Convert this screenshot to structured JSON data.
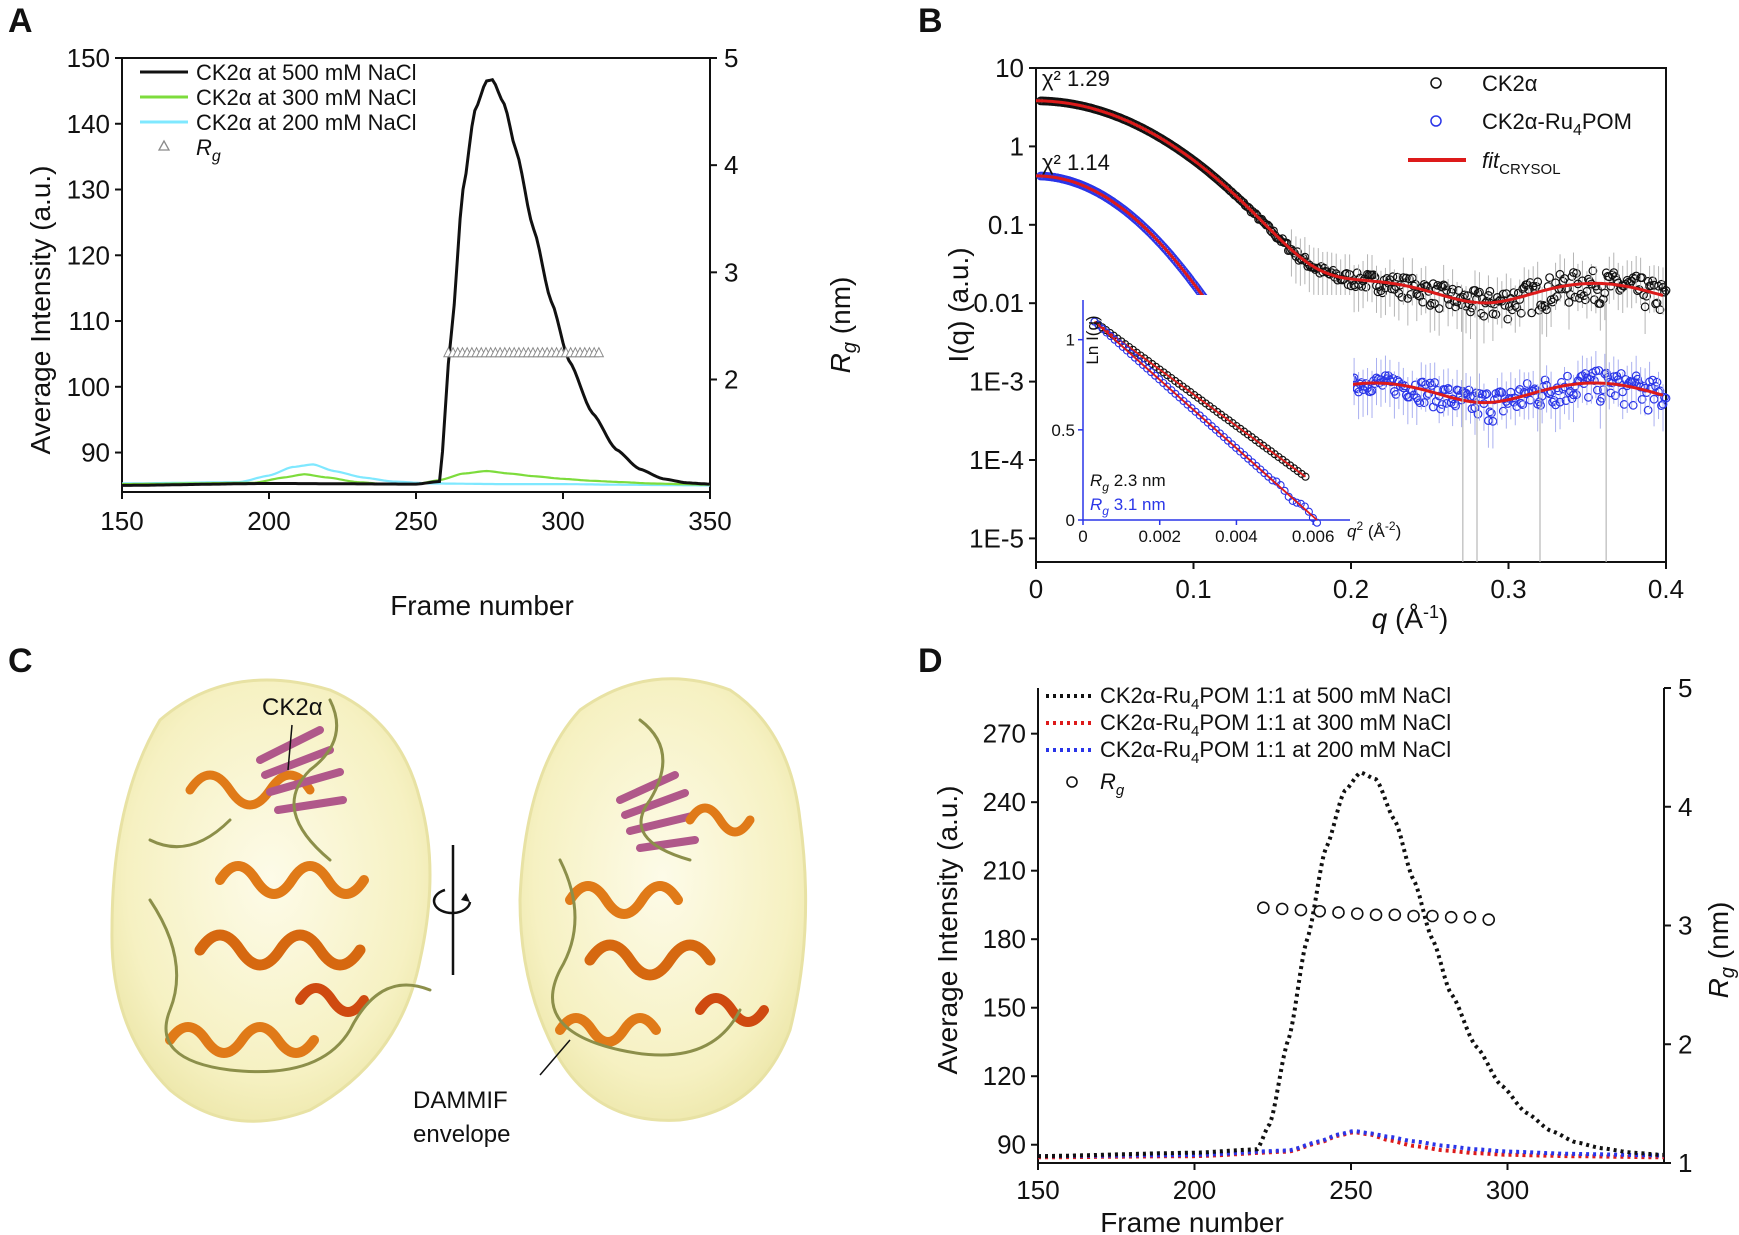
{
  "panels": {
    "A": {
      "letter": "A",
      "legend": [
        "CK2α at 500 mM NaCl",
        "CK2α at 300 mM NaCl",
        "CK2α at 200 mM NaCl"
      ],
      "rg_legend": "R",
      "rg_sub": "g",
      "xlabel": "Frame number",
      "ylabel": "Average Intensity (a.u.)",
      "y2label": "R",
      "y2label_sub": "g",
      "y2label_unit": " (nm)"
    },
    "B": {
      "letter": "B",
      "chi1": "χ² 1.29",
      "chi2": "χ² 1.14",
      "legend_ck2a": "CK2α",
      "legend_ru_a": "CK2α-Ru",
      "legend_ru_sub": "4",
      "legend_ru_b": "POM",
      "legend_fit": "fit",
      "legend_fit_sub": "CRYSOL",
      "xlabel_q": "q",
      "xlabel_unit": " (Å",
      "xlabel_exp": "-1",
      "xlabel_close": ")",
      "ylabel": "I(q) (a.u.)",
      "inset": {
        "ylabel": "Ln I(q)",
        "xlabel_q": "q",
        "xlabel_exp": "2",
        "xlabel_unit": " (Å",
        "xlabel_unit_exp": "-2",
        "xlabel_close": ")",
        "rg1": "R",
        "rg1_sub": "g",
        "rg1_val": " 2.3 nm",
        "rg2": "R",
        "rg2_sub": "g",
        "rg2_val": " 3.1 nm"
      }
    },
    "C": {
      "letter": "C",
      "label_protein": "CK2α",
      "label_env1": "DAMMIF",
      "label_env2": "envelope"
    },
    "D": {
      "letter": "D",
      "legend_prefix": "CK2α-Ru",
      "legend_sub": "4",
      "legend_items": [
        "POM 1:1 at 500 mM NaCl",
        "POM 1:1 at 300 mM NaCl",
        "POM 1:1 at 200 mM NaCl"
      ],
      "rg_legend": "R",
      "rg_sub": "g",
      "xlabel": "Frame number",
      "ylabel": "Average Intensity (a.u.)",
      "y2label": "R",
      "y2label_sub": "g",
      "y2label_unit": " (nm)"
    }
  },
  "colors": {
    "black": "#111111",
    "green": "#7ddc3c",
    "cyan": "#7fe8ff",
    "red": "#dd1a1a",
    "blue": "#2a35e8",
    "grey": "#8a8a8a",
    "envelope": "#f6f3c6",
    "helix": "#e07a18",
    "sheet": "#b0588a",
    "loop": "#8c8f4a"
  },
  "chart_data": [
    {
      "panel": "A",
      "type": "line",
      "title": "",
      "xlabel": "Frame number",
      "ylabel": "Average Intensity (a.u.)",
      "y2label": "Rg (nm)",
      "xlim": [
        150,
        350
      ],
      "ylim": [
        84,
        150
      ],
      "y2lim": [
        0.95,
        5
      ],
      "xticks": [
        150,
        200,
        250,
        300,
        350
      ],
      "yticks": [
        90,
        100,
        110,
        120,
        130,
        140,
        150
      ],
      "y2ticks": [
        2,
        3,
        4,
        5
      ],
      "series": [
        {
          "name": "CK2α at 500 mM NaCl",
          "color": "#111111",
          "x": [
            150,
            200,
            250,
            258,
            262,
            266,
            270,
            274,
            276,
            280,
            284,
            290,
            296,
            302,
            310,
            318,
            326,
            334,
            342,
            350
          ],
          "y": [
            85,
            85.3,
            85.2,
            85.6,
            108,
            130,
            142,
            146.5,
            146.7,
            143,
            136,
            124,
            113,
            104,
            96,
            90.5,
            87.5,
            86,
            85.4,
            85.2
          ]
        },
        {
          "name": "CK2α at 300 mM NaCl",
          "color": "#7ddc3c",
          "x": [
            150,
            195,
            205,
            212,
            220,
            230,
            240,
            250,
            258,
            266,
            274,
            282,
            290,
            300,
            310,
            320,
            330,
            340,
            350
          ],
          "y": [
            85.2,
            85.4,
            86.2,
            86.7,
            86.2,
            85.5,
            85.2,
            85.2,
            85.8,
            86.8,
            87.2,
            86.8,
            86.4,
            86,
            85.7,
            85.5,
            85.3,
            85.2,
            85.1
          ]
        },
        {
          "name": "CK2α at 200 mM NaCl",
          "color": "#7fe8ff",
          "x": [
            150,
            190,
            200,
            208,
            215,
            222,
            232,
            242,
            255,
            280,
            300,
            320,
            350
          ],
          "y": [
            85.3,
            85.5,
            86.5,
            87.8,
            88.2,
            87.2,
            86.2,
            85.6,
            85.3,
            85.2,
            85.2,
            85.1,
            85.0
          ]
        },
        {
          "name": "Rg",
          "color": "#8a8a8a",
          "marker": "triangle",
          "x_range": [
            261,
            313
          ],
          "step": 1.6,
          "rg": 2.25
        }
      ]
    },
    {
      "panel": "B",
      "type": "scatter",
      "title": "",
      "xlabel": "q (Å-1)",
      "ylabel": "I(q) (a.u.)",
      "yscale": "log",
      "xlim": [
        0,
        0.4
      ],
      "ylim": [
        5e-06,
        10
      ],
      "xticks": [
        0,
        0.1,
        0.2,
        0.3,
        0.4
      ],
      "yticks": [
        "10",
        "1",
        "0.1",
        "0.01",
        "1E-3",
        "1E-4",
        "1E-5"
      ],
      "series": [
        {
          "name": "CK2α",
          "I0": 3.8,
          "Rg_nm": 2.3,
          "floor": 0.014,
          "chi2": 1.29,
          "color": "#111111"
        },
        {
          "name": "CK2α-Ru4POM",
          "I0": 0.42,
          "Rg_nm": 3.1,
          "floor": 0.00075,
          "chi2": 1.14,
          "color": "#2a35e8"
        },
        {
          "name": "fitCRYSOL",
          "color": "#dd1a1a"
        }
      ],
      "inset": {
        "type": "scatter",
        "xlabel": "q2 (Å-2)",
        "ylabel": "Ln I(q)",
        "xlim": [
          0,
          0.0067
        ],
        "ylim": [
          0,
          1.22
        ],
        "xticks": [
          0,
          0.002,
          0.004,
          0.006
        ],
        "yticks": [
          0,
          0.5,
          1
        ],
        "series": [
          {
            "name": "Rg 2.3 nm",
            "color": "#111111",
            "x": [
              0.0003,
              0.0058
            ],
            "y": [
              1.1,
              0.24
            ]
          },
          {
            "name": "Rg 3.1 nm",
            "color": "#2a35e8",
            "x": [
              0.0003,
              0.0061
            ],
            "y": [
              1.1,
              0.0
            ]
          }
        ]
      }
    },
    {
      "panel": "D",
      "type": "line",
      "title": "",
      "xlabel": "Frame number",
      "ylabel": "Average Intensity (a.u.)",
      "y2label": "Rg (nm)",
      "xlim": [
        150,
        350
      ],
      "ylim": [
        82,
        290
      ],
      "y2lim": [
        1,
        5
      ],
      "xticks": [
        150,
        200,
        250,
        300
      ],
      "yticks": [
        90,
        120,
        150,
        180,
        210,
        240,
        270
      ],
      "y2ticks": [
        1,
        2,
        3,
        4,
        5
      ],
      "series": [
        {
          "name": "CK2α-Ru4POM 1:1 at 500 mM NaCl",
          "color": "#111111",
          "style": "dotted",
          "x": [
            150,
            200,
            220,
            224,
            230,
            236,
            242,
            248,
            253,
            258,
            264,
            270,
            276,
            282,
            290,
            298,
            306,
            314,
            322,
            330,
            340,
            350
          ],
          "y": [
            85,
            86.5,
            88,
            99,
            136,
            180,
            220,
            245,
            253,
            250,
            232,
            206,
            180,
            156,
            133,
            116,
            104,
            96,
            91,
            88.5,
            86.5,
            85.5
          ]
        },
        {
          "name": "CK2α-Ru4POM 1:1 at 300 mM NaCl",
          "color": "#dd1a1a",
          "style": "dotted",
          "x": [
            150,
            200,
            230,
            240,
            246,
            251,
            256,
            262,
            270,
            280,
            290,
            300,
            320,
            350
          ],
          "y": [
            84.5,
            85,
            87,
            91,
            94,
            95.5,
            94.5,
            92,
            89.5,
            87.5,
            86.3,
            85.6,
            85,
            84.5
          ]
        },
        {
          "name": "CK2α-Ru4POM 1:1 at 200 mM NaCl",
          "color": "#2a35e8",
          "style": "dotted",
          "x": [
            150,
            200,
            230,
            240,
            246,
            251,
            256,
            262,
            270,
            280,
            290,
            300,
            320,
            350
          ],
          "y": [
            85,
            85.5,
            87.5,
            91.5,
            94.5,
            96,
            95,
            93.5,
            91.5,
            89.5,
            88,
            87,
            86,
            85.3
          ]
        },
        {
          "name": "Rg",
          "color": "#111111",
          "marker": "circle",
          "x": [
            222,
            228,
            234,
            240,
            246,
            252,
            258,
            264,
            270,
            276,
            282,
            288,
            294
          ],
          "rg": [
            3.15,
            3.14,
            3.13,
            3.12,
            3.11,
            3.1,
            3.09,
            3.09,
            3.08,
            3.08,
            3.07,
            3.07,
            3.05
          ]
        }
      ]
    }
  ]
}
